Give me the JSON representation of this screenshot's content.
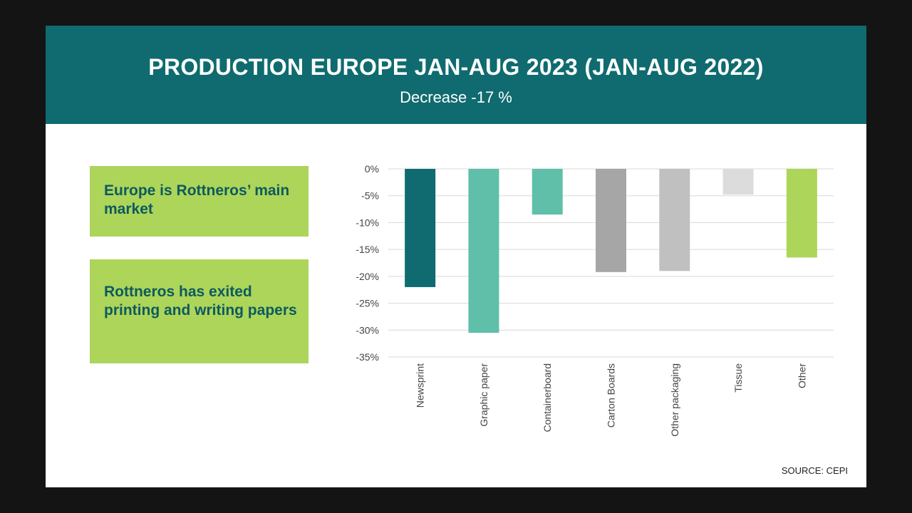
{
  "header": {
    "title": "PRODUCTION EUROPE JAN-AUG 2023 (JAN-AUG 2022)",
    "subtitle": "Decrease -17 %"
  },
  "callouts": [
    "Europe is Rottneros’ main market",
    "Rottneros has exited printing and writing papers"
  ],
  "source": "SOURCE: CEPI",
  "colors": {
    "header_bg": "#0f6b6f",
    "callout_bg": "#acd55a",
    "callout_text": "#0e5a5e"
  },
  "chart_data": {
    "type": "bar",
    "title": "",
    "xlabel": "",
    "ylabel": "",
    "categories": [
      "Newsprint",
      "Graphic paper",
      "Containerboard",
      "Carton Boards",
      "Other packaging",
      "Tissue",
      "Other"
    ],
    "values": [
      -22,
      -30.5,
      -8.5,
      -19.2,
      -19,
      -4.8,
      -16.5
    ],
    "bar_colors": [
      "#0f6b6f",
      "#5fbfa8",
      "#5fbfa8",
      "#a6a6a6",
      "#c0c0c0",
      "#dcdcdc",
      "#acd55a"
    ],
    "ylim": [
      -35,
      0
    ],
    "yticks": [
      0,
      -5,
      -10,
      -15,
      -20,
      -25,
      -30,
      -35
    ],
    "ytick_labels": [
      "0%",
      "-5%",
      "-10%",
      "-15%",
      "-20%",
      "-25%",
      "-30%",
      "-35%"
    ],
    "grid": true,
    "legend": "none"
  }
}
